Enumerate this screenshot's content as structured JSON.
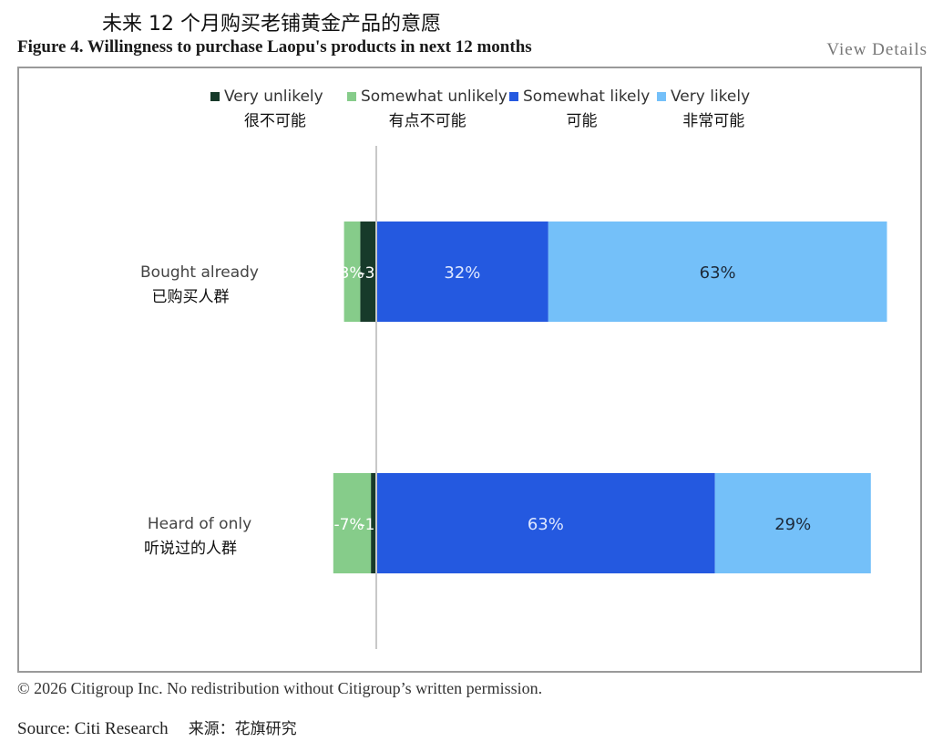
{
  "header": {
    "title_cn": "未来 12 个月购买老铺黄金产品的意愿",
    "figure_title": "Figure 4. Willingness to purchase Laopu's products in next 12 months",
    "view_details": "View Details"
  },
  "chart_data": {
    "type": "bar",
    "orientation": "horizontal",
    "stacked": "diverging",
    "categories": [
      {
        "en": "Bought already",
        "cn": "已购买人群"
      },
      {
        "en": "Heard of only",
        "cn": "听说过的人群"
      }
    ],
    "series": [
      {
        "name": "Very unlikely",
        "name_cn": "很不可能",
        "color": "#173a2a",
        "values": [
          -3,
          -1
        ],
        "labels": [
          "-3%",
          "-1%"
        ]
      },
      {
        "name": "Somewhat unlikely",
        "name_cn": "有点不可能",
        "color": "#86cc8a",
        "values": [
          -3,
          -7
        ],
        "labels": [
          "-3%",
          "-7%"
        ]
      },
      {
        "name": "Somewhat likely",
        "name_cn": "可能",
        "color": "#2459e0",
        "values": [
          32,
          63
        ],
        "labels": [
          "32%",
          "63%"
        ]
      },
      {
        "name": "Very likely",
        "name_cn": "非常可能",
        "color": "#74c0f9",
        "values": [
          63,
          29
        ],
        "labels": [
          "63%",
          "29%"
        ]
      }
    ],
    "legend_position": "top",
    "grid": false
  },
  "footer": {
    "copyright": "© 2026 Citigroup Inc. No redistribution without Citigroup’s written permission.",
    "source": "Source: Citi Research",
    "source_cn": "来源：花旗研究"
  }
}
